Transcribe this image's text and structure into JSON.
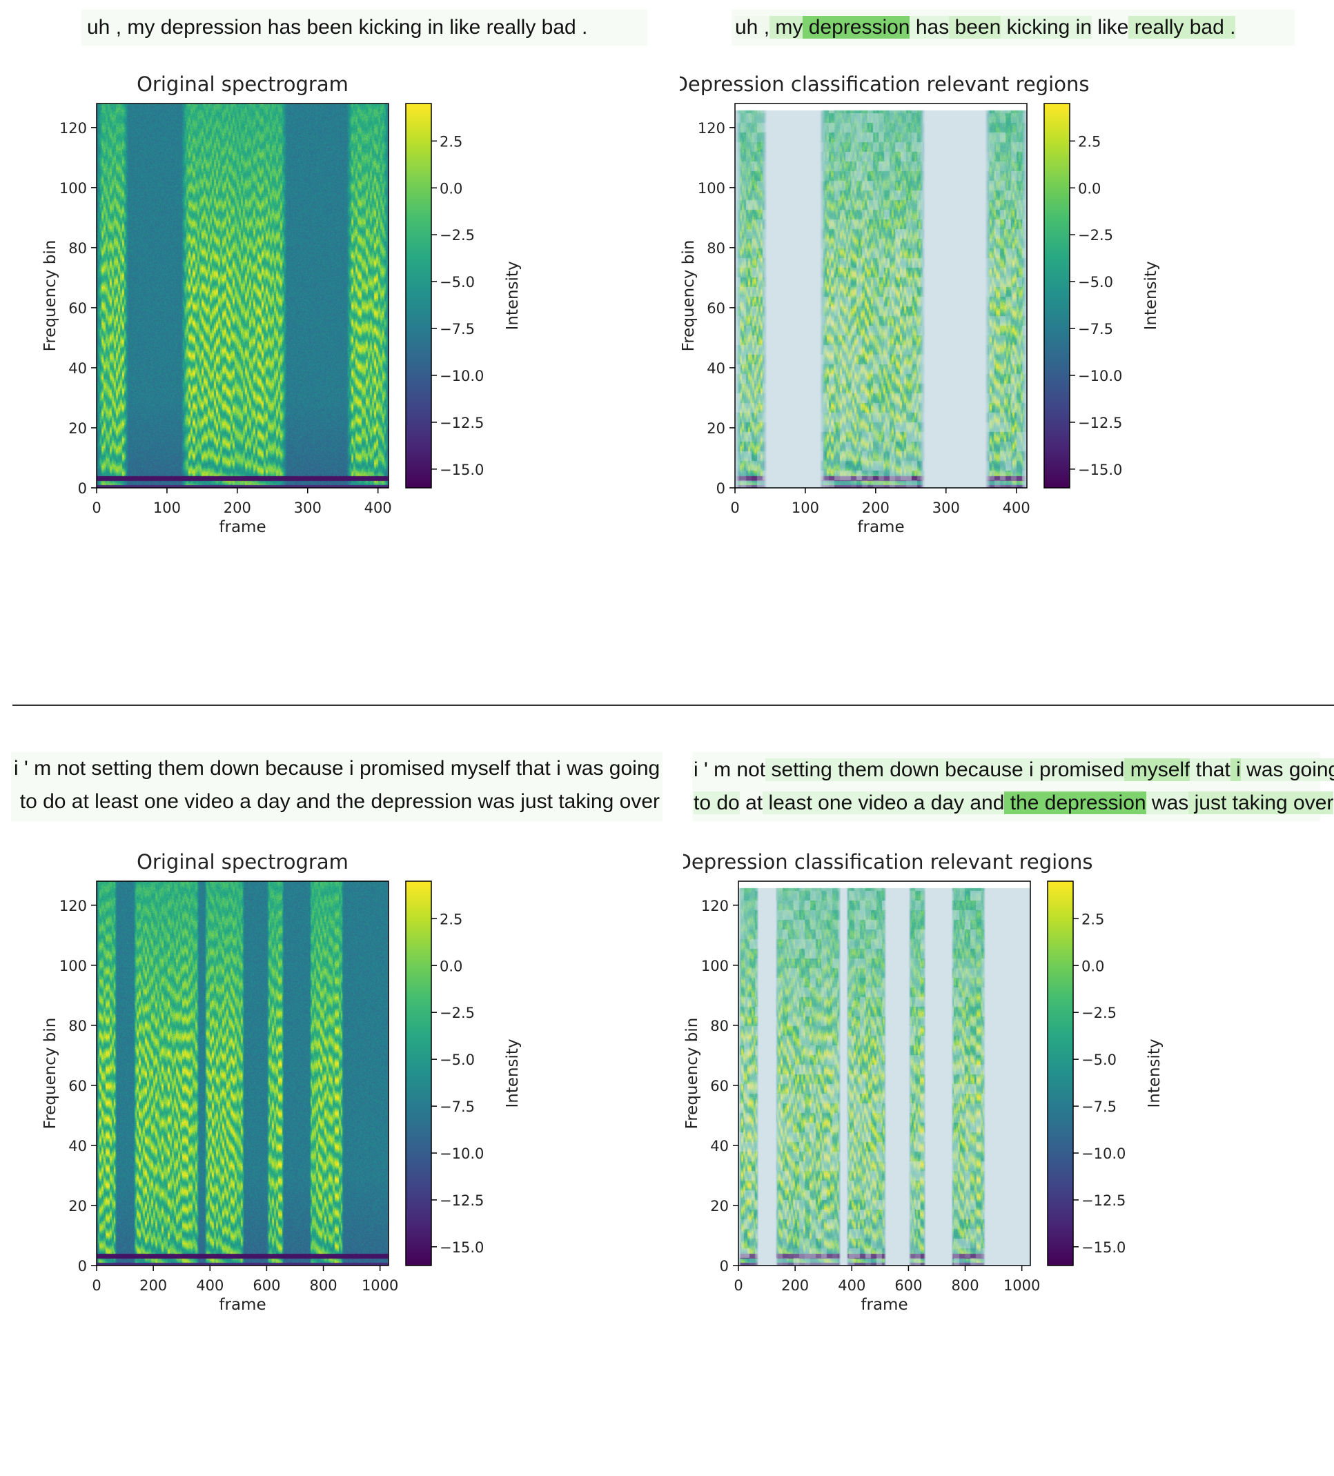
{
  "example1": {
    "left_text_lines": [
      [
        "uh , my depression has been kicking in like really bad ."
      ]
    ],
    "right_tokens": [
      [
        {
          "t": "uh",
          "w": 1
        },
        {
          "t": " ,",
          "w": 1
        },
        {
          "t": " my",
          "w": 3
        },
        {
          "t": " depression",
          "w": 5
        },
        {
          "t": " has",
          "w": 2
        },
        {
          "t": " been",
          "w": 3
        },
        {
          "t": " kicking",
          "w": 2
        },
        {
          "t": " in",
          "w": 2
        },
        {
          "t": " like",
          "w": 0
        },
        {
          "t": " really",
          "w": 3
        },
        {
          "t": " bad",
          "w": 3
        },
        {
          "t": " .",
          "w": 3
        }
      ]
    ],
    "plots": [
      {
        "chart_data": {
          "type": "heatmap",
          "title": "Original spectrogram",
          "xlabel": "frame",
          "ylabel": "Frequency bin",
          "xlim": [
            0,
            415
          ],
          "ylim": [
            0,
            128
          ],
          "xticks": [
            0,
            100,
            200,
            300,
            400
          ],
          "yticks": [
            0,
            20,
            40,
            60,
            80,
            100,
            120
          ],
          "colorbar": {
            "label": "Intensity",
            "range": [
              -16,
              4.5
            ],
            "ticks": [
              2.5,
              0.0,
              -2.5,
              -5.0,
              -7.5,
              -10.0,
              -12.5,
              -15.0
            ]
          },
          "voiced_segments": [
            [
              0,
              45
            ],
            [
              120,
              270
            ],
            [
              355,
              415
            ]
          ],
          "overlay": false
        }
      },
      {
        "chart_data": {
          "type": "heatmap",
          "title": "Depression classification relevant regions",
          "xlabel": "frame",
          "ylabel": "Frequency bin",
          "xlim": [
            0,
            415
          ],
          "ylim": [
            0,
            128
          ],
          "xticks": [
            0,
            100,
            200,
            300,
            400
          ],
          "yticks": [
            0,
            20,
            40,
            60,
            80,
            100,
            120
          ],
          "colorbar": {
            "label": "Intensity",
            "range": [
              -16,
              4.5
            ],
            "ticks": [
              2.5,
              0.0,
              -2.5,
              -5.0,
              -7.5,
              -10.0,
              -12.5,
              -15.0
            ]
          },
          "voiced_segments": [
            [
              0,
              45
            ],
            [
              120,
              270
            ],
            [
              355,
              415
            ]
          ],
          "overlay": true
        }
      }
    ]
  },
  "example2": {
    "left_text_lines": [
      [
        "i ' m not setting them down because i promised myself that i was going"
      ],
      [
        "to do at least one video a day and the depression was just taking over"
      ]
    ],
    "right_tokens": [
      [
        {
          "t": "i",
          "w": 0
        },
        {
          "t": " '",
          "w": 0
        },
        {
          "t": " m",
          "w": 0
        },
        {
          "t": " not",
          "w": 0
        },
        {
          "t": " setting",
          "w": 2
        },
        {
          "t": " them",
          "w": 2
        },
        {
          "t": " down",
          "w": 2
        },
        {
          "t": " because",
          "w": 2
        },
        {
          "t": " i",
          "w": 2
        },
        {
          "t": " promised",
          "w": 2
        },
        {
          "t": " myself",
          "w": 4
        },
        {
          "t": " that",
          "w": 2
        },
        {
          "t": " i",
          "w": 4
        },
        {
          "t": " was",
          "w": 2
        },
        {
          "t": " going",
          "w": 2
        }
      ],
      [
        {
          "t": "to",
          "w": 2
        },
        {
          "t": " do",
          "w": 2
        },
        {
          "t": " at",
          "w": 0
        },
        {
          "t": " least",
          "w": 2
        },
        {
          "t": " one",
          "w": 2
        },
        {
          "t": " video",
          "w": 2
        },
        {
          "t": " a",
          "w": 2
        },
        {
          "t": " day",
          "w": 2
        },
        {
          "t": " and",
          "w": 2
        },
        {
          "t": " the",
          "w": 5
        },
        {
          "t": " depression",
          "w": 5
        },
        {
          "t": " was",
          "w": 2
        },
        {
          "t": " just",
          "w": 3
        },
        {
          "t": " taking",
          "w": 3
        },
        {
          "t": " over",
          "w": 3
        }
      ]
    ],
    "plots": [
      {
        "chart_data": {
          "type": "heatmap",
          "title": "Original spectrogram",
          "xlabel": "frame",
          "ylabel": "Frequency bin",
          "xlim": [
            0,
            1030
          ],
          "ylim": [
            0,
            128
          ],
          "xticks": [
            0,
            200,
            400,
            600,
            800,
            1000
          ],
          "yticks": [
            0,
            20,
            40,
            60,
            80,
            100,
            120
          ],
          "colorbar": {
            "label": "Intensity",
            "range": [
              -16,
              4.5
            ],
            "ticks": [
              2.5,
              0.0,
              -2.5,
              -5.0,
              -7.5,
              -10.0,
              -12.5,
              -15.0
            ]
          },
          "voiced_segments": [
            [
              0,
              70
            ],
            [
              130,
              360
            ],
            [
              380,
              520
            ],
            [
              600,
              660
            ],
            [
              750,
              870
            ]
          ],
          "overlay": false
        }
      },
      {
        "chart_data": {
          "type": "heatmap",
          "title": "Depression classification relevant regions",
          "xlabel": "frame",
          "ylabel": "Frequency bin",
          "xlim": [
            0,
            1030
          ],
          "ylim": [
            0,
            128
          ],
          "xticks": [
            0,
            200,
            400,
            600,
            800,
            1000
          ],
          "yticks": [
            0,
            20,
            40,
            60,
            80,
            100,
            120
          ],
          "colorbar": {
            "label": "Intensity",
            "range": [
              -16,
              4.5
            ],
            "ticks": [
              2.5,
              0.0,
              -2.5,
              -5.0,
              -7.5,
              -10.0,
              -12.5,
              -15.0
            ]
          },
          "voiced_segments": [
            [
              0,
              70
            ],
            [
              130,
              360
            ],
            [
              380,
              520
            ],
            [
              600,
              660
            ],
            [
              750,
              870
            ]
          ],
          "overlay": true
        }
      }
    ]
  }
}
